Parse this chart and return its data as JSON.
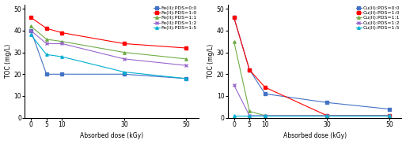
{
  "x": [
    0,
    5,
    10,
    30,
    50
  ],
  "left": {
    "ylabel": "TOC (mg/L)",
    "xlabel": "Absorbed dose (kGy)",
    "series": [
      {
        "label": "Fe(II):PDS=0:0",
        "color": "#4472C4",
        "marker": "s",
        "values": [
          40,
          20,
          20,
          20,
          18
        ]
      },
      {
        "label": "Fe(II):PDS=1:0",
        "color": "#FF0000",
        "marker": "s",
        "values": [
          46,
          41,
          39,
          34,
          32
        ]
      },
      {
        "label": "Fe(II):PDS=1:1",
        "color": "#70AD47",
        "marker": "^",
        "values": [
          42,
          36,
          35,
          30,
          27
        ]
      },
      {
        "label": "Fe(II):PDS=1:2",
        "color": "#9966CC",
        "marker": "x",
        "values": [
          40,
          34,
          34,
          27,
          24
        ]
      },
      {
        "label": "Fe(II):PDS=1:5",
        "color": "#00B0D0",
        "marker": "^",
        "values": [
          38,
          29,
          28,
          21,
          18
        ]
      }
    ],
    "ylim": [
      0,
      52
    ],
    "yticks": [
      0,
      10,
      20,
      30,
      40,
      50
    ]
  },
  "right": {
    "ylabel": "TOC (mg/L)",
    "xlabel": "Absorbed dose (kGy)",
    "series": [
      {
        "label": "Cu(II):PDS=0:0",
        "color": "#4472C4",
        "marker": "s",
        "values": [
          46,
          22,
          11,
          7,
          4
        ]
      },
      {
        "label": "Cu(II):PDS=1:0",
        "color": "#FF0000",
        "marker": "s",
        "values": [
          46,
          22,
          14,
          1,
          1
        ]
      },
      {
        "label": "Cu(II):PDS=1:1",
        "color": "#70AD47",
        "marker": "^",
        "values": [
          35,
          3,
          1,
          1,
          1
        ]
      },
      {
        "label": "Cu(II):PDS=1:2",
        "color": "#9966CC",
        "marker": "x",
        "values": [
          15,
          1,
          1,
          1,
          1
        ]
      },
      {
        "label": "Cu(II):PDS=1:5",
        "color": "#00B0D0",
        "marker": "^",
        "values": [
          1,
          1,
          1,
          1,
          1
        ]
      }
    ],
    "ylim": [
      0,
      52
    ],
    "yticks": [
      0,
      10,
      20,
      30,
      40,
      50
    ]
  },
  "bg_color": "#FFFFFF",
  "legend_font_size": 4.5,
  "tick_font_size": 5.5,
  "label_font_size": 5.5,
  "linewidth": 0.8,
  "markersize": 2.5
}
